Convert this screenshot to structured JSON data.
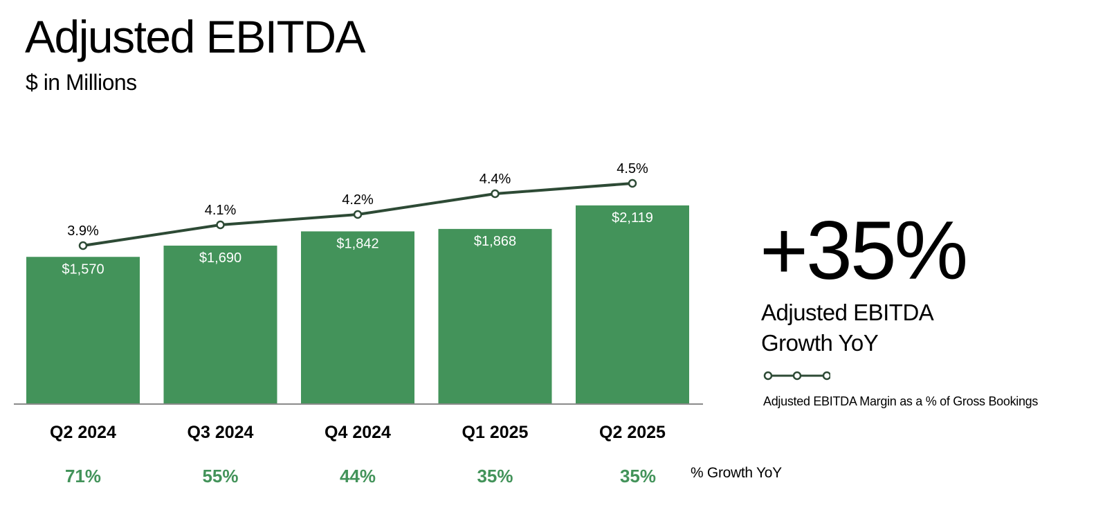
{
  "header": {
    "title": "Adjusted EBITDA",
    "subtitle": "$ in Millions"
  },
  "chart_data": {
    "type": "bar",
    "title": "Adjusted EBITDA",
    "subtitle": "$ in Millions",
    "categories": [
      "Q2 2024",
      "Q3 2024",
      "Q4 2024",
      "Q1 2025",
      "Q2 2025"
    ],
    "series": [
      {
        "name": "Adjusted EBITDA",
        "type": "bar",
        "values": [
          1570,
          1690,
          1842,
          1868,
          2119
        ],
        "labels": [
          "$1,570",
          "$1,690",
          "$1,842",
          "$1,868",
          "$2,119"
        ]
      },
      {
        "name": "Adjusted EBITDA Margin as a % of Gross Bookings",
        "type": "line",
        "values": [
          3.9,
          4.1,
          4.2,
          4.4,
          4.5
        ],
        "labels": [
          "3.9%",
          "4.1%",
          "4.2%",
          "4.4%",
          "4.5%"
        ]
      }
    ],
    "growth_yoy": {
      "label": "% Growth YoY",
      "values": [
        "71%",
        "55%",
        "44%",
        "35%",
        "35%"
      ]
    },
    "colors": {
      "bar": "#43935a",
      "line": "#2d4a35",
      "growth": "#43935a",
      "axis": "#8a8a8a"
    }
  },
  "highlight": {
    "value": "+35%",
    "label_line1": "Adjusted EBITDA",
    "label_line2": "Growth YoY"
  },
  "legend": {
    "line_label": "Adjusted EBITDA Margin as a % of Gross Bookings",
    "icon": "line-marker-icon"
  }
}
